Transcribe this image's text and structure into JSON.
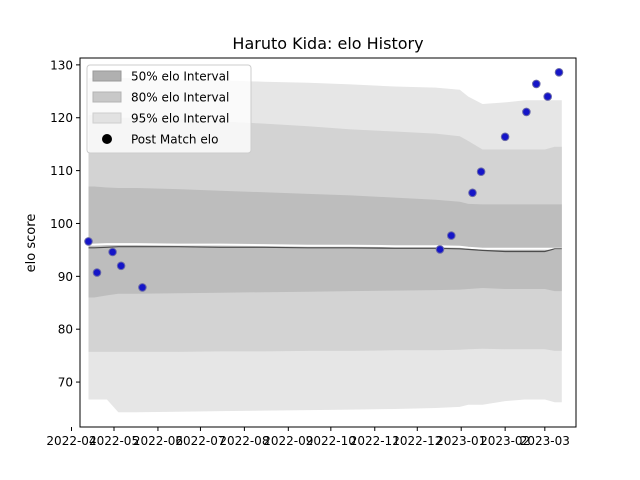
{
  "chart_data": {
    "type": "area",
    "title": "Haruto Kida: elo History",
    "xlabel": "",
    "ylabel": "elo score",
    "x_range": [
      "2022-04-07",
      "2023-03-23"
    ],
    "ylim": [
      61.5,
      131.3
    ],
    "yticks": [
      70,
      80,
      90,
      100,
      110,
      120,
      130
    ],
    "xticks": [
      "2022-04",
      "2022-05",
      "2022-06",
      "2022-07",
      "2022-08",
      "2022-09",
      "2022-10",
      "2022-11",
      "2022-12",
      "2023-01",
      "2023-02",
      "2023-03"
    ],
    "legend": {
      "position": "top-left",
      "entries": [
        "50% elo Interval",
        "80% elo Interval",
        "95% elo Interval",
        "Post Match elo"
      ]
    },
    "colors": {
      "band50": "#bdbdbd",
      "band80": "#d3d3d3",
      "band95": "#e6e6e6",
      "mean_line": "#ffffff",
      "median_line": "#4d4d4d",
      "points_fill": "#1515c8",
      "points_edge": "#6a6aa8"
    },
    "x": [
      "2022-04-13",
      "2022-04-17",
      "2022-04-26",
      "2022-05-04",
      "2022-05-17",
      "2022-06-15",
      "2022-07-15",
      "2022-08-15",
      "2022-09-15",
      "2022-10-15",
      "2022-11-15",
      "2022-12-14",
      "2022-12-31",
      "2023-01-06",
      "2023-01-16",
      "2023-02-01",
      "2023-02-15",
      "2023-03-01",
      "2023-03-08",
      "2023-03-13"
    ],
    "bands": {
      "p95_upper": [
        127.5,
        127.5,
        127.5,
        127.5,
        127.5,
        127.3,
        127.1,
        126.8,
        126.6,
        126.3,
        125.9,
        125.7,
        125.3,
        124.0,
        122.6,
        122.9,
        123.3,
        123.3,
        123.3,
        123.3
      ],
      "p80_upper": [
        120.5,
        120.5,
        120.2,
        120.0,
        120.0,
        119.7,
        119.3,
        118.9,
        118.4,
        117.8,
        117.4,
        117.0,
        116.5,
        115.6,
        114.0,
        114.0,
        114.0,
        114.0,
        114.5,
        114.5
      ],
      "p50_upper": [
        107.0,
        107.0,
        106.8,
        106.7,
        106.7,
        106.5,
        106.2,
        105.9,
        105.6,
        105.3,
        104.9,
        104.5,
        104.1,
        103.7,
        103.6,
        103.6,
        103.6,
        103.6,
        103.6,
        103.6
      ],
      "p50_lower": [
        86.0,
        86.0,
        86.4,
        86.7,
        86.7,
        86.8,
        86.9,
        87.0,
        87.1,
        87.2,
        87.3,
        87.4,
        87.5,
        87.6,
        87.8,
        87.6,
        87.6,
        87.6,
        87.2,
        87.2
      ],
      "p80_lower": [
        75.7,
        75.7,
        75.7,
        75.7,
        75.7,
        75.7,
        75.8,
        75.8,
        75.9,
        75.9,
        76.0,
        76.0,
        76.1,
        76.2,
        76.3,
        76.2,
        76.2,
        76.2,
        75.9,
        75.9
      ],
      "p95_lower": [
        66.7,
        66.7,
        66.7,
        64.3,
        64.3,
        64.4,
        64.5,
        64.6,
        64.7,
        64.8,
        64.9,
        65.1,
        65.3,
        65.7,
        65.7,
        66.4,
        66.7,
        66.7,
        66.2,
        66.2
      ]
    },
    "mean_line": [
      96.0,
      96.0,
      96.1,
      96.1,
      96.1,
      96.0,
      96.0,
      95.9,
      95.8,
      95.8,
      95.7,
      95.7,
      95.6,
      95.4,
      95.2,
      95.2,
      95.2,
      95.2,
      95.2,
      95.2
    ],
    "median_line": [
      95.4,
      95.4,
      95.5,
      95.6,
      95.6,
      95.6,
      95.5,
      95.5,
      95.4,
      95.4,
      95.3,
      95.3,
      95.2,
      95.1,
      94.9,
      94.7,
      94.7,
      94.7,
      95.2,
      95.2
    ],
    "points": [
      {
        "x": "2022-04-13",
        "y": 96.6
      },
      {
        "x": "2022-04-19",
        "y": 90.7
      },
      {
        "x": "2022-04-30",
        "y": 94.6
      },
      {
        "x": "2022-05-06",
        "y": 92.0
      },
      {
        "x": "2022-05-21",
        "y": 87.9
      },
      {
        "x": "2022-12-17",
        "y": 95.1
      },
      {
        "x": "2022-12-25",
        "y": 97.7
      },
      {
        "x": "2023-01-09",
        "y": 105.8
      },
      {
        "x": "2023-01-15",
        "y": 109.8
      },
      {
        "x": "2023-02-01",
        "y": 116.4
      },
      {
        "x": "2023-02-16",
        "y": 121.1
      },
      {
        "x": "2023-02-23",
        "y": 126.4
      },
      {
        "x": "2023-03-03",
        "y": 124.0
      },
      {
        "x": "2023-03-11",
        "y": 128.6
      }
    ]
  }
}
